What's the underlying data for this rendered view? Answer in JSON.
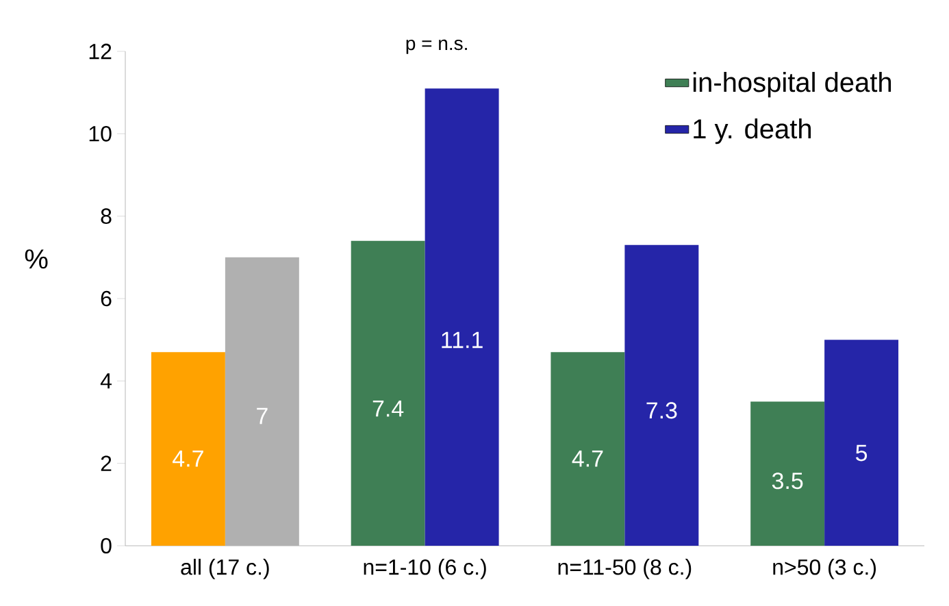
{
  "chart_data": {
    "type": "bar",
    "ylabel": "%",
    "categories": [
      "all (17 c.)",
      "n=1-10 (6 c.)",
      "n=11-50 (8 c.)",
      "n>50 (3 c.)"
    ],
    "series": [
      {
        "name": "in-hospital death",
        "color": "#3f7f55",
        "colors": [
          "#ffa200",
          "#3f7f55",
          "#3f7f55",
          "#3f7f55"
        ],
        "values": [
          4.7,
          7.4,
          4.7,
          3.5
        ]
      },
      {
        "name": "1 y. death",
        "color": "#2525a8",
        "colors": [
          "#b0b0b0",
          "#2525a8",
          "#2525a8",
          "#2525a8"
        ],
        "values": [
          7,
          11.1,
          7.3,
          5
        ]
      }
    ],
    "ylim": [
      0,
      12
    ],
    "yticks": [
      0,
      2,
      4,
      6,
      8,
      10,
      12
    ],
    "data_labels": true,
    "grid": false,
    "legend": "top right",
    "annotations": [
      "p = n.s."
    ]
  }
}
